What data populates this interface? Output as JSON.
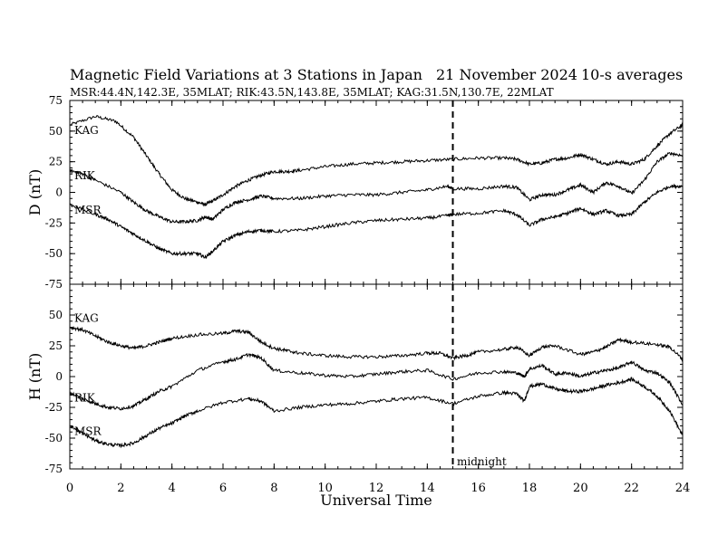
{
  "title": "Magnetic Field Variations at 3 Stations in Japan",
  "date_label": "21 November 2024",
  "averaging_label": "10-s averages",
  "subtitle": "MSR:44.4N,142.3E, 35MLAT;  RIK:43.5N,143.8E, 35MLAT;  KAG:31.5N,130.7E, 22MLAT",
  "annotation": "midnight",
  "chart_data": [
    {
      "type": "line",
      "panel": "top",
      "xlabel": "",
      "ylabel": "D (nT)",
      "xlim": [
        0,
        24
      ],
      "ylim": [
        -75,
        75
      ],
      "yticks": [
        -75,
        -50,
        -25,
        0,
        25,
        50,
        75
      ],
      "xticks": [
        0,
        2,
        4,
        6,
        8,
        10,
        12,
        14,
        16,
        18,
        20,
        22,
        24
      ],
      "vline_x": 15,
      "series": [
        {
          "name": "KAG",
          "x": [
            0,
            1,
            1.8,
            2.5,
            3,
            3.5,
            4,
            4.5,
            5,
            5.3,
            5.6,
            6,
            6.5,
            7,
            7.5,
            8,
            8.5,
            9,
            10,
            11,
            12,
            13,
            14,
            15,
            16,
            17,
            17.5,
            18,
            18.5,
            19,
            19.5,
            20,
            20.5,
            21,
            21.5,
            22,
            22.5,
            23,
            23.5,
            24
          ],
          "values": [
            55,
            62,
            58,
            45,
            30,
            15,
            2,
            -5,
            -8,
            -10,
            -7,
            -2,
            5,
            10,
            14,
            17,
            17,
            18,
            21,
            23,
            24,
            25,
            26,
            27,
            28,
            28,
            27,
            23,
            24,
            27,
            28,
            31,
            27,
            23,
            25,
            23,
            27,
            38,
            48,
            55
          ]
        },
        {
          "name": "RIK",
          "x": [
            0,
            0.5,
            1,
            2,
            2.5,
            3,
            3.5,
            4,
            4.5,
            5,
            5.3,
            5.6,
            6,
            6.5,
            7,
            7.5,
            8,
            9,
            10,
            11,
            12,
            13,
            14,
            14.8,
            15,
            16,
            17,
            17.5,
            18,
            18.5,
            19,
            19.5,
            20,
            20.5,
            21,
            21.5,
            22,
            22.5,
            23,
            23.5,
            24
          ],
          "values": [
            18,
            15,
            10,
            0,
            -8,
            -15,
            -20,
            -24,
            -24,
            -23,
            -20,
            -22,
            -14,
            -8,
            -6,
            -3,
            -5,
            -5,
            -3,
            -2,
            -2,
            0,
            2,
            5,
            3,
            3,
            5,
            4,
            -6,
            -2,
            -2,
            2,
            6,
            0,
            8,
            5,
            -1,
            10,
            25,
            32,
            30
          ]
        },
        {
          "name": "MSR",
          "x": [
            0,
            1,
            1.5,
            2,
            2.5,
            3,
            3.5,
            4,
            4.5,
            5,
            5.3,
            5.6,
            6,
            6.5,
            7,
            7.5,
            8,
            9,
            10,
            11,
            12,
            13,
            14,
            14.8,
            15,
            16,
            17,
            17.5,
            18,
            18.5,
            19,
            19.5,
            20,
            20.5,
            21,
            21.5,
            22,
            22.5,
            23,
            23.5,
            24
          ],
          "values": [
            -10,
            -18,
            -22,
            -28,
            -34,
            -40,
            -46,
            -50,
            -50,
            -50,
            -53,
            -48,
            -40,
            -35,
            -32,
            -31,
            -32,
            -31,
            -28,
            -25,
            -23,
            -22,
            -21,
            -19,
            -18,
            -17,
            -15,
            -18,
            -27,
            -22,
            -20,
            -17,
            -13,
            -18,
            -15,
            -19,
            -18,
            -8,
            0,
            5,
            5
          ]
        }
      ]
    },
    {
      "type": "line",
      "panel": "bottom",
      "xlabel": "Universal Time",
      "ylabel": "H (nT)",
      "xlim": [
        0,
        24
      ],
      "ylim": [
        -75,
        75
      ],
      "yticks": [
        -75,
        -50,
        -25,
        0,
        25,
        50,
        75
      ],
      "xticks": [
        0,
        2,
        4,
        6,
        8,
        10,
        12,
        14,
        16,
        18,
        20,
        22,
        24
      ],
      "vline_x": 15,
      "series": [
        {
          "name": "KAG",
          "x": [
            0,
            0.5,
            1,
            1.5,
            2,
            2.5,
            3,
            3.5,
            4,
            5,
            6,
            6.5,
            7,
            7.5,
            8,
            8.5,
            9,
            10,
            11,
            12,
            13,
            14,
            14.5,
            15,
            15.5,
            16,
            17,
            17.5,
            18,
            18.5,
            19,
            20,
            20.5,
            21,
            21.5,
            22,
            23,
            23.5,
            24
          ],
          "values": [
            40,
            38,
            33,
            28,
            25,
            23,
            25,
            28,
            31,
            34,
            35,
            37,
            36,
            28,
            23,
            21,
            19,
            17,
            16,
            16,
            17,
            19,
            19,
            15,
            17,
            20,
            22,
            24,
            17,
            24,
            25,
            18,
            20,
            24,
            30,
            28,
            26,
            24,
            14
          ]
        },
        {
          "name": "RIK",
          "x": [
            0,
            0.5,
            1,
            1.5,
            2,
            2.5,
            3,
            3.5,
            4,
            5,
            6,
            6.5,
            7,
            7.5,
            8,
            9,
            10,
            11,
            12,
            13,
            14,
            15,
            16,
            17,
            17.5,
            17.8,
            18,
            18.5,
            19,
            19.5,
            20,
            20.5,
            21,
            21.5,
            22,
            22.5,
            23,
            23.5,
            24
          ],
          "values": [
            -13,
            -18,
            -22,
            -25,
            -26,
            -24,
            -18,
            -12,
            -8,
            5,
            12,
            14,
            18,
            15,
            5,
            3,
            1,
            0,
            2,
            4,
            5,
            -2,
            3,
            4,
            3,
            0,
            6,
            9,
            2,
            3,
            0,
            3,
            5,
            7,
            12,
            5,
            3,
            -5,
            -23
          ]
        },
        {
          "name": "MSR",
          "x": [
            0,
            0.5,
            1,
            1.5,
            2,
            2.5,
            3,
            3.5,
            4,
            4.5,
            5,
            6,
            7,
            7.5,
            8,
            9,
            10,
            11,
            12,
            13,
            14,
            15,
            16,
            17,
            17.5,
            17.8,
            18,
            18.5,
            19,
            19.5,
            20,
            20.5,
            21,
            21.5,
            22,
            22.5,
            23,
            23.5,
            24
          ],
          "values": [
            -40,
            -46,
            -52,
            -55,
            -56,
            -54,
            -48,
            -42,
            -38,
            -32,
            -28,
            -21,
            -18,
            -20,
            -28,
            -25,
            -23,
            -22,
            -20,
            -18,
            -17,
            -22,
            -16,
            -13,
            -14,
            -20,
            -8,
            -6,
            -10,
            -12,
            -12,
            -10,
            -7,
            -5,
            -2,
            -8,
            -16,
            -28,
            -48
          ]
        }
      ]
    }
  ]
}
